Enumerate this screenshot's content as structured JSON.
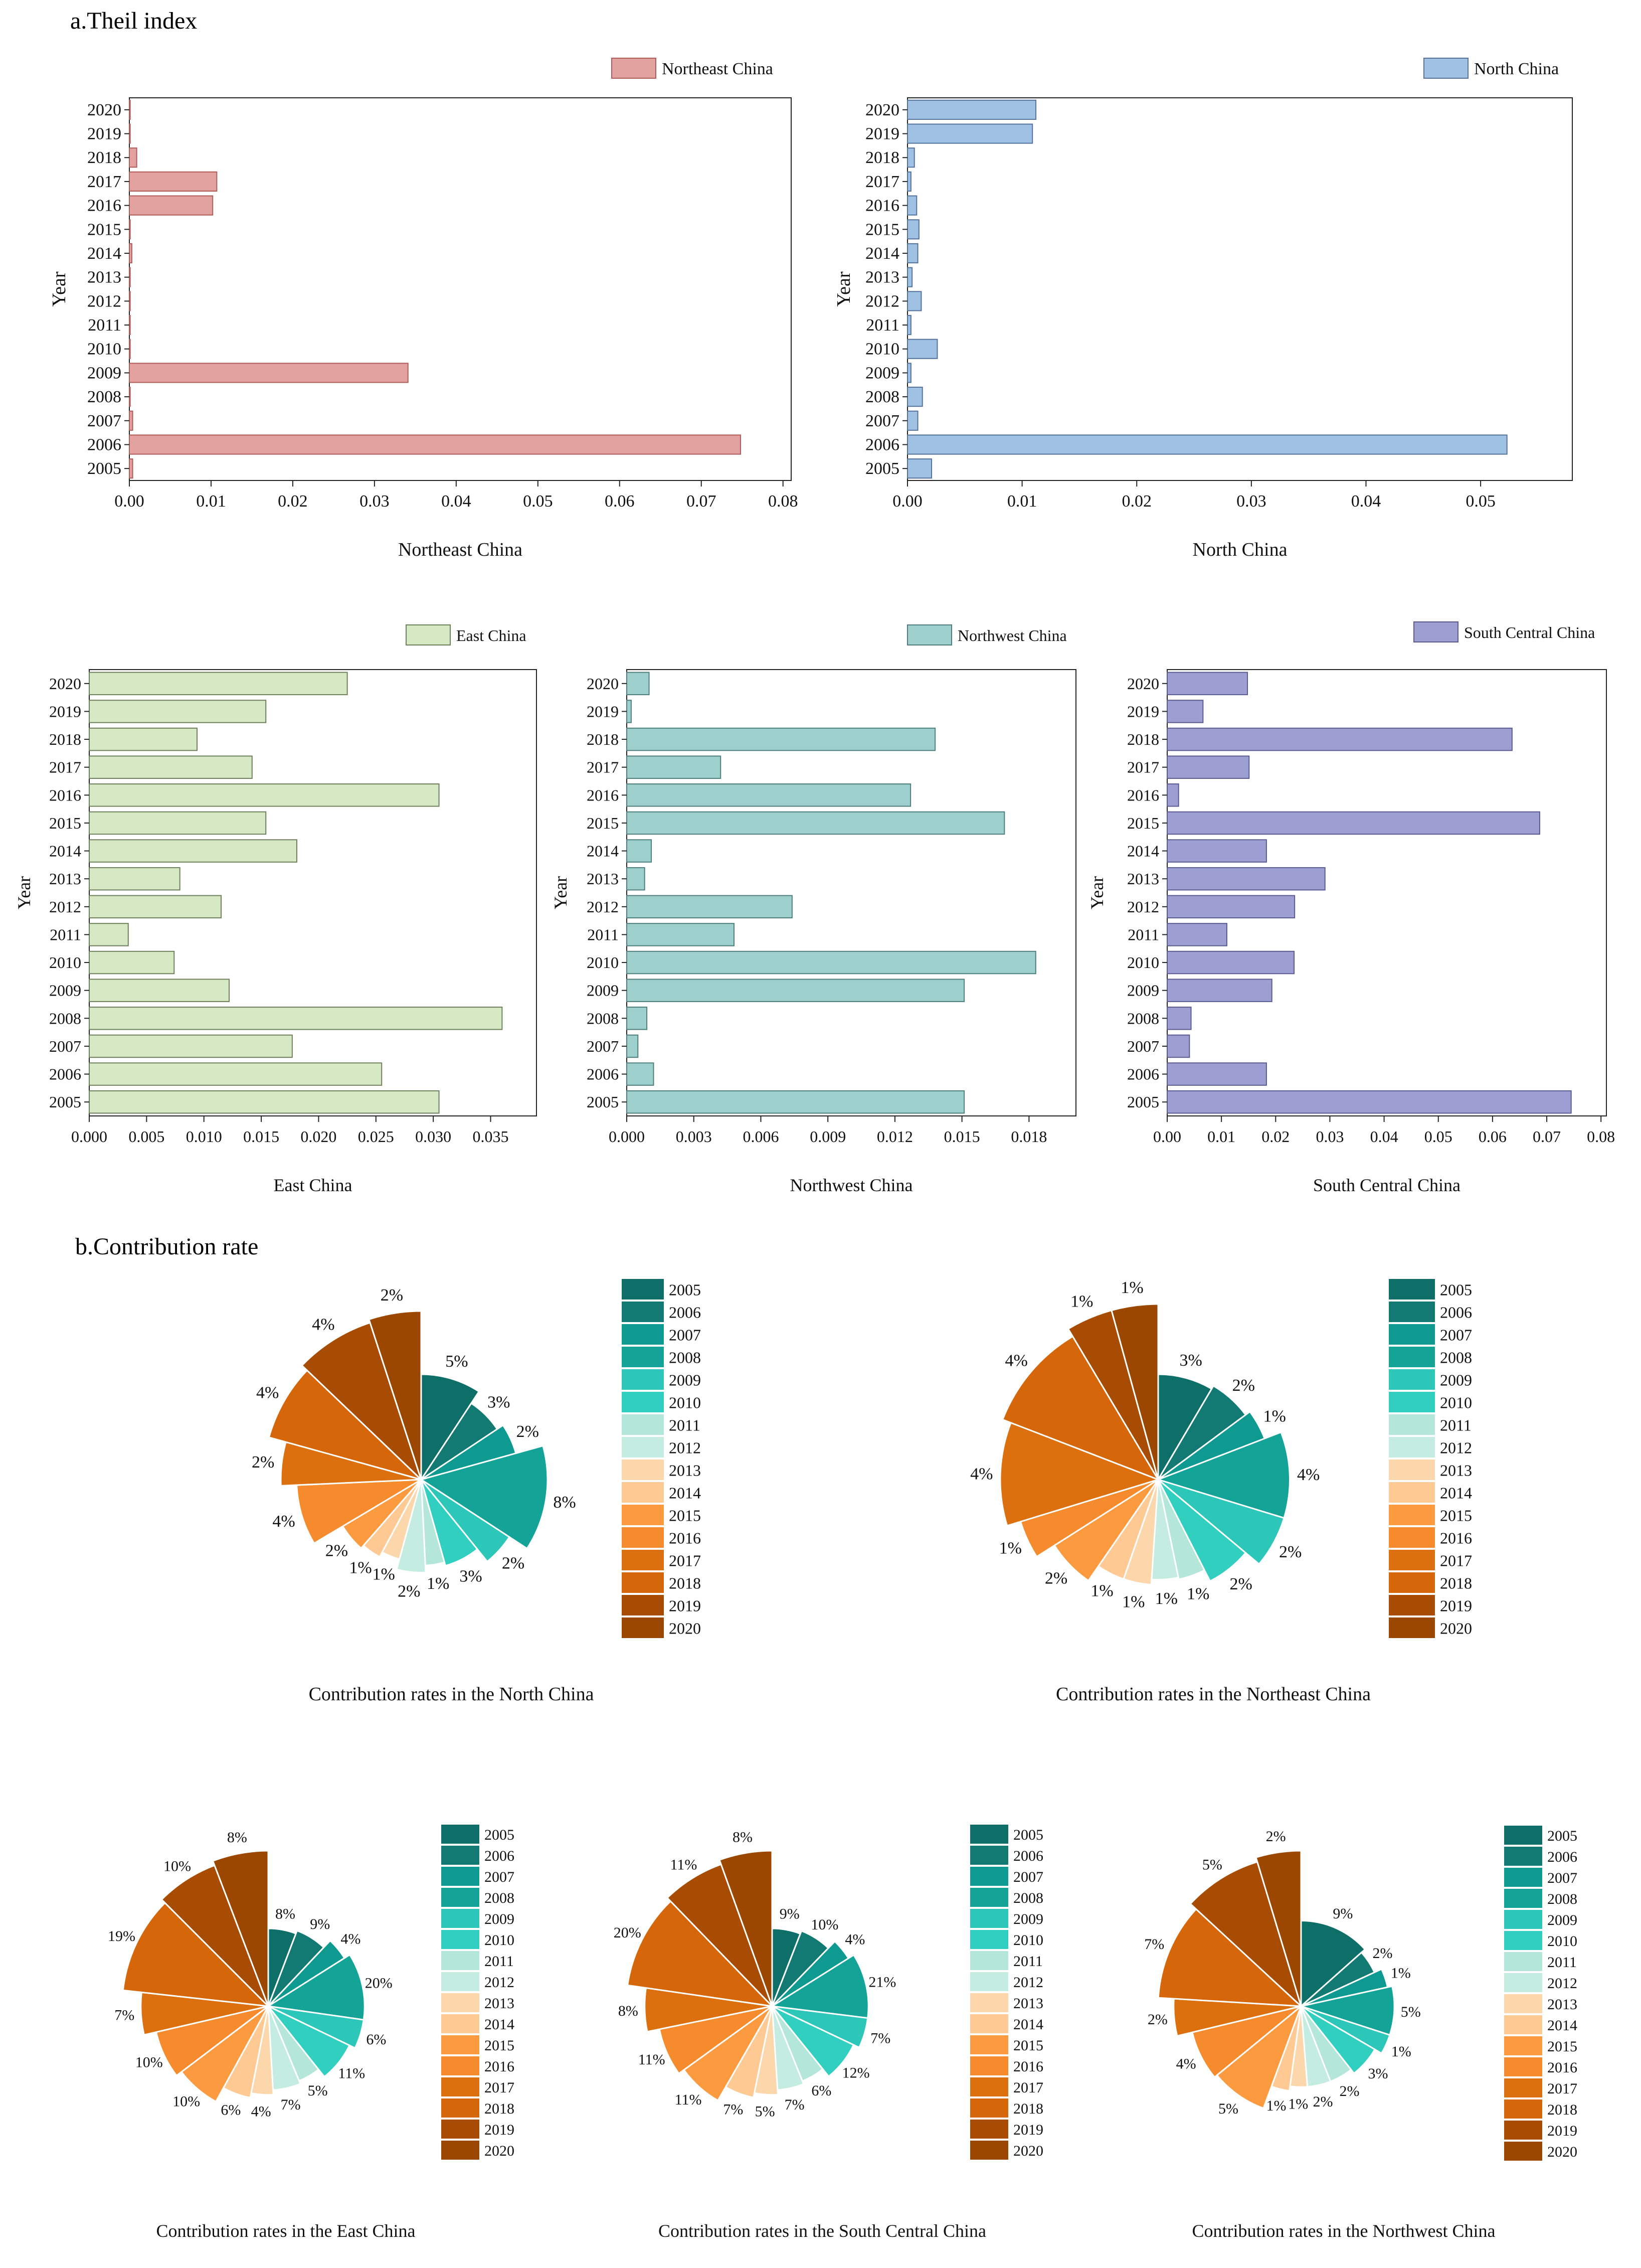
{
  "section_a_title": "a.Theil index",
  "section_b_title": "b.Contribution rate",
  "year_colors": [
    "#0d6f68",
    "#127a72",
    "#0e9a90",
    "#13a497",
    "#2cc7b9",
    "#31cfc0",
    "#b5e6da",
    "#c4ece1",
    "#fcd7ac",
    "#ffc994",
    "#fb9a3e",
    "#f58b2d",
    "#dc6f0e",
    "#d56609",
    "#a84c03",
    "#9c4700"
  ],
  "chart_data": [
    {
      "type": "bar",
      "orientation": "horizontal",
      "title": "Northeast China",
      "legend": "Northeast China",
      "xlabel": "Northeast China",
      "ylabel": "Year",
      "color": "#e2a2a0",
      "edge": "#b25c5a",
      "categories": [
        "2005",
        "2006",
        "2007",
        "2008",
        "2009",
        "2010",
        "2011",
        "2012",
        "2013",
        "2014",
        "2015",
        "2016",
        "2017",
        "2018",
        "2019",
        "2020"
      ],
      "values": [
        0.0004,
        0.0748,
        0.0004,
        0.0001,
        0.0341,
        0.0001,
        0.0001,
        0.0001,
        0.0001,
        0.0003,
        0.0001,
        0.0102,
        0.0107,
        0.0009,
        0.0001,
        0.0001
      ],
      "xlim": [
        0,
        0.081
      ],
      "ticks": [
        0,
        0.01,
        0.02,
        0.03,
        0.04,
        0.05,
        0.06,
        0.07,
        0.08
      ],
      "tick_labels": [
        "0.00",
        "0.01",
        "0.02",
        "0.03",
        "0.04",
        "0.05",
        "0.06",
        "0.07",
        "0.08"
      ]
    },
    {
      "type": "bar",
      "orientation": "horizontal",
      "title": "North China",
      "legend": "North China",
      "xlabel": "North China",
      "ylabel": "Year",
      "color": "#9fc1e4",
      "edge": "#55739a",
      "categories": [
        "2005",
        "2006",
        "2007",
        "2008",
        "2009",
        "2010",
        "2011",
        "2012",
        "2013",
        "2014",
        "2015",
        "2016",
        "2017",
        "2018",
        "2019",
        "2020"
      ],
      "values": [
        0.0021,
        0.0523,
        0.0009,
        0.0013,
        0.0003,
        0.0026,
        0.0003,
        0.0012,
        0.0004,
        0.0009,
        0.001,
        0.0008,
        0.0003,
        0.0006,
        0.0109,
        0.0112
      ],
      "xlim": [
        0,
        0.058
      ],
      "ticks": [
        0,
        0.01,
        0.02,
        0.03,
        0.04,
        0.05
      ],
      "tick_labels": [
        "0.00",
        "0.01",
        "0.02",
        "0.03",
        "0.04",
        "0.05"
      ]
    },
    {
      "type": "bar",
      "orientation": "horizontal",
      "title": "East China",
      "legend": "East China",
      "xlabel": "East China",
      "ylabel": "Year",
      "color": "#d6e8c4",
      "edge": "#6e7f5c",
      "categories": [
        "2005",
        "2006",
        "2007",
        "2008",
        "2009",
        "2010",
        "2011",
        "2012",
        "2013",
        "2014",
        "2015",
        "2016",
        "2017",
        "2018",
        "2019",
        "2020"
      ],
      "values": [
        0.0305,
        0.0255,
        0.0177,
        0.036,
        0.0122,
        0.0074,
        0.0034,
        0.0115,
        0.0079,
        0.0181,
        0.0154,
        0.0305,
        0.0142,
        0.0094,
        0.0154,
        0.0225
      ],
      "xlim": [
        0,
        0.039
      ],
      "ticks": [
        0,
        0.005,
        0.01,
        0.015,
        0.02,
        0.025,
        0.03,
        0.035
      ],
      "tick_labels": [
        "0.000",
        "0.005",
        "0.010",
        "0.015",
        "0.020",
        "0.025",
        "0.030",
        "0.035"
      ]
    },
    {
      "type": "bar",
      "orientation": "horizontal",
      "title": "Northwest China",
      "legend": "Northwest China",
      "xlabel": "Northwest China",
      "ylabel": "Year",
      "color": "#9dd0cc",
      "edge": "#4f7f7c",
      "categories": [
        "2005",
        "2006",
        "2007",
        "2008",
        "2009",
        "2010",
        "2011",
        "2012",
        "2013",
        "2014",
        "2015",
        "2016",
        "2017",
        "2018",
        "2019",
        "2020"
      ],
      "values": [
        0.0151,
        0.0012,
        0.0005,
        0.0009,
        0.0151,
        0.0183,
        0.0048,
        0.0074,
        0.0008,
        0.0011,
        0.0169,
        0.0127,
        0.0042,
        0.0138,
        0.0002,
        0.001
      ],
      "xlim": [
        0,
        0.0201
      ],
      "ticks": [
        0,
        0.003,
        0.006,
        0.009,
        0.012,
        0.015,
        0.018
      ],
      "tick_labels": [
        "0.000",
        "0.003",
        "0.006",
        "0.009",
        "0.012",
        "0.015",
        "0.018"
      ]
    },
    {
      "type": "bar",
      "orientation": "horizontal",
      "title": "South Central China",
      "legend": "South Central China",
      "xlabel": "South Central China",
      "ylabel": "Year",
      "color": "#9d9fd3",
      "edge": "#5a5c8f",
      "categories": [
        "2005",
        "2006",
        "2007",
        "2008",
        "2009",
        "2010",
        "2011",
        "2012",
        "2013",
        "2014",
        "2015",
        "2016",
        "2017",
        "2018",
        "2019",
        "2020"
      ],
      "values": [
        0.0745,
        0.0183,
        0.0041,
        0.0044,
        0.0193,
        0.0234,
        0.011,
        0.0235,
        0.0291,
        0.0183,
        0.0687,
        0.0021,
        0.0151,
        0.0636,
        0.0066,
        0.0148
      ],
      "xlim": [
        0,
        0.081
      ],
      "ticks": [
        0,
        0.01,
        0.02,
        0.03,
        0.04,
        0.05,
        0.06,
        0.07,
        0.08
      ],
      "tick_labels": [
        "0.00",
        "0.01",
        "0.02",
        "0.03",
        "0.04",
        "0.05",
        "0.06",
        "0.07",
        "0.08"
      ]
    },
    {
      "type": "pie",
      "subtype": "polar-area",
      "title": "Contribution rates in the North China",
      "categories": [
        "2005",
        "2006",
        "2007",
        "2008",
        "2009",
        "2010",
        "2011",
        "2012",
        "2013",
        "2014",
        "2015",
        "2016",
        "2017",
        "2018",
        "2019",
        "2020"
      ],
      "values": [
        5,
        3,
        2,
        8,
        2,
        3,
        1,
        2,
        1,
        1,
        2,
        4,
        2,
        4,
        4,
        2
      ],
      "labels": [
        "5%",
        "3%",
        "2%",
        "8%",
        "2%",
        "3%",
        "1%",
        "2%",
        "1%",
        "1%",
        "2%",
        "4%",
        "2%",
        "4%",
        "4%",
        "2%"
      ],
      "radii": [
        0.6,
        0.52,
        0.56,
        0.72,
        0.6,
        0.51,
        0.49,
        0.53,
        0.47,
        0.5,
        0.52,
        0.71,
        0.8,
        0.9,
        0.94,
        0.96
      ]
    },
    {
      "type": "pie",
      "subtype": "polar-area",
      "title": "Contribution rates in the Northeast China",
      "categories": [
        "2005",
        "2006",
        "2007",
        "2008",
        "2009",
        "2010",
        "2011",
        "2012",
        "2013",
        "2014",
        "2015",
        "2016",
        "2017",
        "2018",
        "2019",
        "2020"
      ],
      "values": [
        3,
        2,
        1,
        4,
        2,
        2,
        1,
        1,
        1,
        1,
        2,
        1,
        4,
        4,
        1,
        1
      ],
      "labels": [
        "3%",
        "2%",
        "1%",
        "4%",
        "2%",
        "2%",
        "1%",
        "1%",
        "1%",
        "1%",
        "2%",
        "1%",
        "4%",
        "4%",
        "1%",
        "1%"
      ],
      "radii": [
        0.6,
        0.62,
        0.65,
        0.75,
        0.75,
        0.65,
        0.58,
        0.57,
        0.6,
        0.6,
        0.7,
        0.82,
        0.9,
        0.95,
        1.0,
        1.0
      ]
    },
    {
      "type": "pie",
      "subtype": "polar-area",
      "title": "Contribution rates in the East China",
      "categories": [
        "2005",
        "2006",
        "2007",
        "2008",
        "2009",
        "2010",
        "2011",
        "2012",
        "2013",
        "2014",
        "2015",
        "2016",
        "2017",
        "2018",
        "2019",
        "2020"
      ],
      "values": [
        8,
        9,
        4,
        20,
        6,
        11,
        5,
        7,
        4,
        6,
        10,
        10,
        7,
        19,
        10,
        8
      ],
      "labels": [
        "8%",
        "9%",
        "4%",
        "20%",
        "6%",
        "11%",
        "5%",
        "7%",
        "4%",
        "6%",
        "10%",
        "10%",
        "7%",
        "19%",
        "10%",
        "8%"
      ],
      "radii": [
        0.5,
        0.52,
        0.58,
        0.62,
        0.62,
        0.58,
        0.52,
        0.54,
        0.57,
        0.6,
        0.7,
        0.74,
        0.82,
        0.94,
        0.97,
        1.0
      ]
    },
    {
      "type": "pie",
      "subtype": "polar-area",
      "title": "Contribution rates in the South Central China",
      "categories": [
        "2005",
        "2006",
        "2007",
        "2008",
        "2009",
        "2010",
        "2011",
        "2012",
        "2013",
        "2014",
        "2015",
        "2016",
        "2017",
        "2018",
        "2019",
        "2020"
      ],
      "values": [
        9,
        10,
        4,
        21,
        7,
        12,
        6,
        7,
        5,
        7,
        11,
        11,
        8,
        20,
        11,
        8
      ],
      "labels": [
        "9%",
        "10%",
        "4%",
        "21%",
        "7%",
        "12%",
        "6%",
        "7%",
        "5%",
        "7%",
        "11%",
        "11%",
        "8%",
        "20%",
        "11%",
        "8%"
      ],
      "radii": [
        0.5,
        0.52,
        0.58,
        0.62,
        0.62,
        0.58,
        0.52,
        0.54,
        0.57,
        0.6,
        0.7,
        0.74,
        0.82,
        0.94,
        0.97,
        1.0
      ]
    },
    {
      "type": "pie",
      "subtype": "polar-area",
      "title": "Contribution rates in the Northwest China",
      "categories": [
        "2005",
        "2006",
        "2007",
        "2008",
        "2009",
        "2010",
        "2011",
        "2012",
        "2013",
        "2014",
        "2015",
        "2016",
        "2017",
        "2018",
        "2019",
        "2020"
      ],
      "values": [
        9,
        2,
        1,
        5,
        1,
        3,
        2,
        2,
        1,
        1,
        5,
        4,
        2,
        7,
        5,
        2
      ],
      "labels": [
        "9%",
        "2%",
        "1%",
        "5%",
        "1%",
        "3%",
        "2%",
        "2%",
        "1%",
        "1%",
        "5%",
        "4%",
        "2%",
        "7%",
        "5%",
        "2%"
      ],
      "radii": [
        0.55,
        0.52,
        0.57,
        0.6,
        0.6,
        0.55,
        0.52,
        0.52,
        0.52,
        0.55,
        0.7,
        0.72,
        0.82,
        0.92,
        0.97,
        1.0
      ]
    }
  ]
}
